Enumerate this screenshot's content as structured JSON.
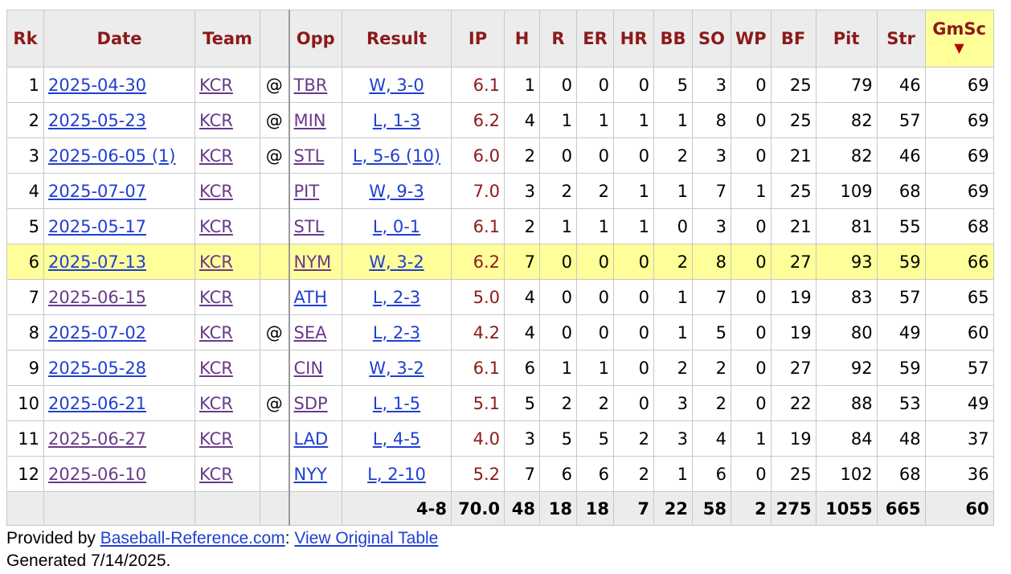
{
  "headers": {
    "rk": "Rk",
    "date": "Date",
    "team": "Team",
    "at": "",
    "opp": "Opp",
    "result": "Result",
    "ip": "IP",
    "h": "H",
    "r": "R",
    "er": "ER",
    "hr": "HR",
    "bb": "BB",
    "so": "SO",
    "wp": "WP",
    "bf": "BF",
    "pit": "Pit",
    "str": "Str",
    "gmsc": "GmSc",
    "sort_arrow": "▼"
  },
  "rows": [
    {
      "rk": "1",
      "date": "2025-04-30",
      "team": "KCR",
      "at": "@",
      "opp": "TBR",
      "result": "W, 3-0",
      "ip": "6.1",
      "h": "1",
      "r": "0",
      "er": "0",
      "hr": "0",
      "bb": "5",
      "so": "3",
      "wp": "0",
      "bf": "25",
      "pit": "79",
      "str": "46",
      "gmsc": "69"
    },
    {
      "rk": "2",
      "date": "2025-05-23",
      "team": "KCR",
      "at": "@",
      "opp": "MIN",
      "result": "L, 1-3",
      "ip": "6.2",
      "h": "4",
      "r": "1",
      "er": "1",
      "hr": "1",
      "bb": "1",
      "so": "8",
      "wp": "0",
      "bf": "25",
      "pit": "82",
      "str": "57",
      "gmsc": "69"
    },
    {
      "rk": "3",
      "date": "2025-06-05 (1)",
      "team": "KCR",
      "at": "@",
      "opp": "STL",
      "result": "L, 5-6 (10)",
      "ip": "6.0",
      "h": "2",
      "r": "0",
      "er": "0",
      "hr": "0",
      "bb": "2",
      "so": "3",
      "wp": "0",
      "bf": "21",
      "pit": "82",
      "str": "46",
      "gmsc": "69"
    },
    {
      "rk": "4",
      "date": "2025-07-07",
      "team": "KCR",
      "at": "",
      "opp": "PIT",
      "result": "W, 9-3",
      "ip": "7.0",
      "h": "3",
      "r": "2",
      "er": "2",
      "hr": "1",
      "bb": "1",
      "so": "7",
      "wp": "1",
      "bf": "25",
      "pit": "109",
      "str": "68",
      "gmsc": "69"
    },
    {
      "rk": "5",
      "date": "2025-05-17",
      "team": "KCR",
      "at": "",
      "opp": "STL",
      "result": "L, 0-1",
      "ip": "6.1",
      "h": "2",
      "r": "1",
      "er": "1",
      "hr": "1",
      "bb": "0",
      "so": "3",
      "wp": "0",
      "bf": "21",
      "pit": "81",
      "str": "55",
      "gmsc": "68"
    },
    {
      "rk": "6",
      "date": "2025-07-13",
      "team": "KCR",
      "at": "",
      "opp": "NYM",
      "result": "W, 3-2",
      "ip": "6.2",
      "h": "7",
      "r": "0",
      "er": "0",
      "hr": "0",
      "bb": "2",
      "so": "8",
      "wp": "0",
      "bf": "27",
      "pit": "93",
      "str": "59",
      "gmsc": "66"
    },
    {
      "rk": "7",
      "date": "2025-06-15",
      "team": "KCR",
      "at": "",
      "opp": "ATH",
      "result": "L, 2-3",
      "ip": "5.0",
      "h": "4",
      "r": "0",
      "er": "0",
      "hr": "0",
      "bb": "1",
      "so": "7",
      "wp": "0",
      "bf": "19",
      "pit": "83",
      "str": "57",
      "gmsc": "65"
    },
    {
      "rk": "8",
      "date": "2025-07-02",
      "team": "KCR",
      "at": "@",
      "opp": "SEA",
      "result": "L, 2-3",
      "ip": "4.2",
      "h": "4",
      "r": "0",
      "er": "0",
      "hr": "0",
      "bb": "1",
      "so": "5",
      "wp": "0",
      "bf": "19",
      "pit": "80",
      "str": "49",
      "gmsc": "60"
    },
    {
      "rk": "9",
      "date": "2025-05-28",
      "team": "KCR",
      "at": "",
      "opp": "CIN",
      "result": "W, 3-2",
      "ip": "6.1",
      "h": "6",
      "r": "1",
      "er": "1",
      "hr": "0",
      "bb": "2",
      "so": "2",
      "wp": "0",
      "bf": "27",
      "pit": "92",
      "str": "59",
      "gmsc": "57"
    },
    {
      "rk": "10",
      "date": "2025-06-21",
      "team": "KCR",
      "at": "@",
      "opp": "SDP",
      "result": "L, 1-5",
      "ip": "5.1",
      "h": "5",
      "r": "2",
      "er": "2",
      "hr": "0",
      "bb": "3",
      "so": "2",
      "wp": "0",
      "bf": "22",
      "pit": "88",
      "str": "53",
      "gmsc": "49"
    },
    {
      "rk": "11",
      "date": "2025-06-27",
      "team": "KCR",
      "at": "",
      "opp": "LAD",
      "result": "L, 4-5",
      "ip": "4.0",
      "h": "3",
      "r": "5",
      "er": "5",
      "hr": "2",
      "bb": "3",
      "so": "4",
      "wp": "1",
      "bf": "19",
      "pit": "84",
      "str": "48",
      "gmsc": "37"
    },
    {
      "rk": "12",
      "date": "2025-06-10",
      "team": "KCR",
      "at": "",
      "opp": "NYY",
      "result": "L, 2-10",
      "ip": "5.2",
      "h": "7",
      "r": "6",
      "er": "6",
      "hr": "2",
      "bb": "1",
      "so": "6",
      "wp": "0",
      "bf": "25",
      "pit": "102",
      "str": "68",
      "gmsc": "36"
    }
  ],
  "totals": {
    "result": "4-8",
    "ip": "70.0",
    "h": "48",
    "r": "18",
    "er": "18",
    "hr": "7",
    "bb": "22",
    "so": "58",
    "wp": "2",
    "bf": "275",
    "pit": "1055",
    "str": "665",
    "gmsc": "60"
  },
  "footer": {
    "provided_by": "Provided by ",
    "site_link": "Baseball-Reference.com",
    "sep": ": ",
    "view_link": "View Original Table",
    "generated": "Generated 7/14/2025."
  },
  "colors": {
    "header_text": "#8b1a1a",
    "highlight": "#ffff99",
    "link": "#1f3fd1",
    "visited": "#6a3a8a"
  }
}
